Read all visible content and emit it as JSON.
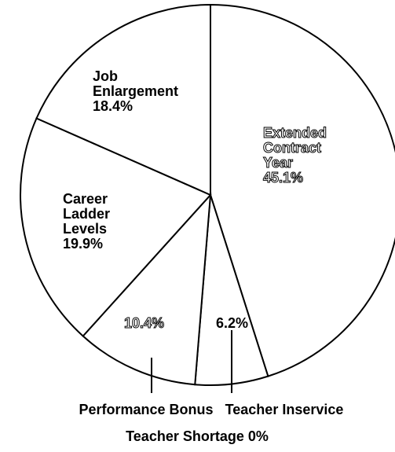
{
  "chart_data": {
    "type": "pie",
    "categories": [
      "Extended Contract Year",
      "Teacher Inservice",
      "Performance Bonus",
      "Career Ladder Levels",
      "Job Enlargement",
      "Teacher Shortage"
    ],
    "values": [
      45.1,
      6.2,
      10.4,
      19.9,
      18.4,
      0
    ],
    "value_labels": [
      "45.1%",
      "6.2%",
      "10.4%",
      "19.9%",
      "18.4%",
      "0%"
    ],
    "color": "#ffffff"
  }
}
